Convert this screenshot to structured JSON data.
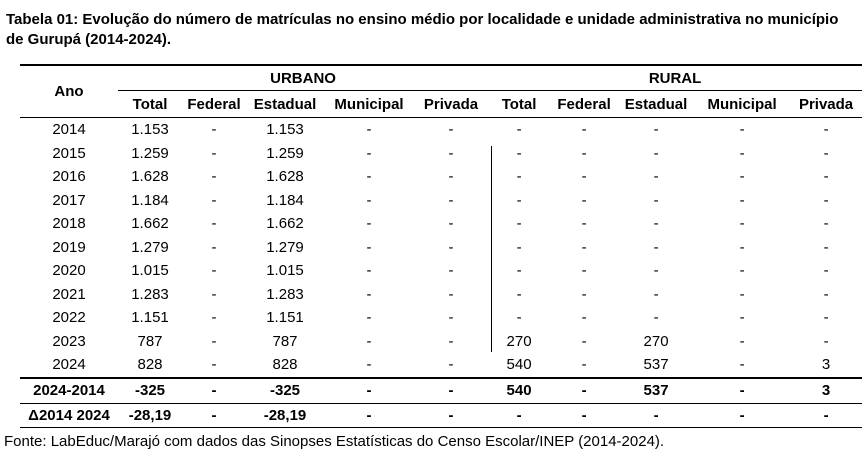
{
  "title": "Tabela 01: Evolução do número de matrículas no ensino médio por localidade e unidade administrativa no município de Gurupá (2014-2024).",
  "header": {
    "ano": "Ano",
    "urbano": "URBANO",
    "rural": "RURAL",
    "columns": [
      "Total",
      "Federal",
      "Estadual",
      "Municipal",
      "Privada",
      "Total",
      "Federal",
      "Estadual",
      "Municipal",
      "Privada"
    ]
  },
  "rows": [
    {
      "ano": "2014",
      "cells": [
        "1.153",
        "-",
        "1.153",
        "-",
        "-",
        "-",
        "-",
        "-",
        "-",
        "-"
      ]
    },
    {
      "ano": "2015",
      "cells": [
        "1.259",
        "-",
        "1.259",
        "-",
        "-",
        "-",
        "-",
        "-",
        "-",
        "-"
      ]
    },
    {
      "ano": "2016",
      "cells": [
        "1.628",
        "-",
        "1.628",
        "-",
        "-",
        "-",
        "-",
        "-",
        "-",
        "-"
      ]
    },
    {
      "ano": "2017",
      "cells": [
        "1.184",
        "-",
        "1.184",
        "-",
        "-",
        "-",
        "-",
        "-",
        "-",
        "-"
      ]
    },
    {
      "ano": "2018",
      "cells": [
        "1.662",
        "-",
        "1.662",
        "-",
        "-",
        "-",
        "-",
        "-",
        "-",
        "-"
      ]
    },
    {
      "ano": "2019",
      "cells": [
        "1.279",
        "-",
        "1.279",
        "-",
        "-",
        "-",
        "-",
        "-",
        "-",
        "-"
      ]
    },
    {
      "ano": "2020",
      "cells": [
        "1.015",
        "-",
        "1.015",
        "-",
        "-",
        "-",
        "-",
        "-",
        "-",
        "-"
      ]
    },
    {
      "ano": "2021",
      "cells": [
        "1.283",
        "-",
        "1.283",
        "-",
        "-",
        "-",
        "-",
        "-",
        "-",
        "-"
      ]
    },
    {
      "ano": "2022",
      "cells": [
        "1.151",
        "-",
        "1.151",
        "-",
        "-",
        "-",
        "-",
        "-",
        "-",
        "-"
      ]
    },
    {
      "ano": "2023",
      "cells": [
        "787",
        "-",
        "787",
        "-",
        "-",
        "270",
        "-",
        "270",
        "-",
        "-"
      ]
    },
    {
      "ano": "2024",
      "cells": [
        "828",
        "-",
        "828",
        "-",
        "-",
        "540",
        "-",
        "537",
        "-",
        "3"
      ]
    }
  ],
  "summary": [
    {
      "ano": "2024-2014",
      "cells": [
        "-325",
        "-",
        "-325",
        "-",
        "-",
        "540",
        "-",
        "537",
        "-",
        "3"
      ]
    },
    {
      "ano": "Δ2014 2024",
      "cells": [
        "-28,19",
        "-",
        "-28,19",
        "-",
        "-",
        "-",
        "-",
        "-",
        "-",
        "-"
      ]
    }
  ],
  "source": "Fonte: LabEduc/Marajó com dados das Sinopses Estatísticas do Censo Escolar/INEP (2014-2024)."
}
